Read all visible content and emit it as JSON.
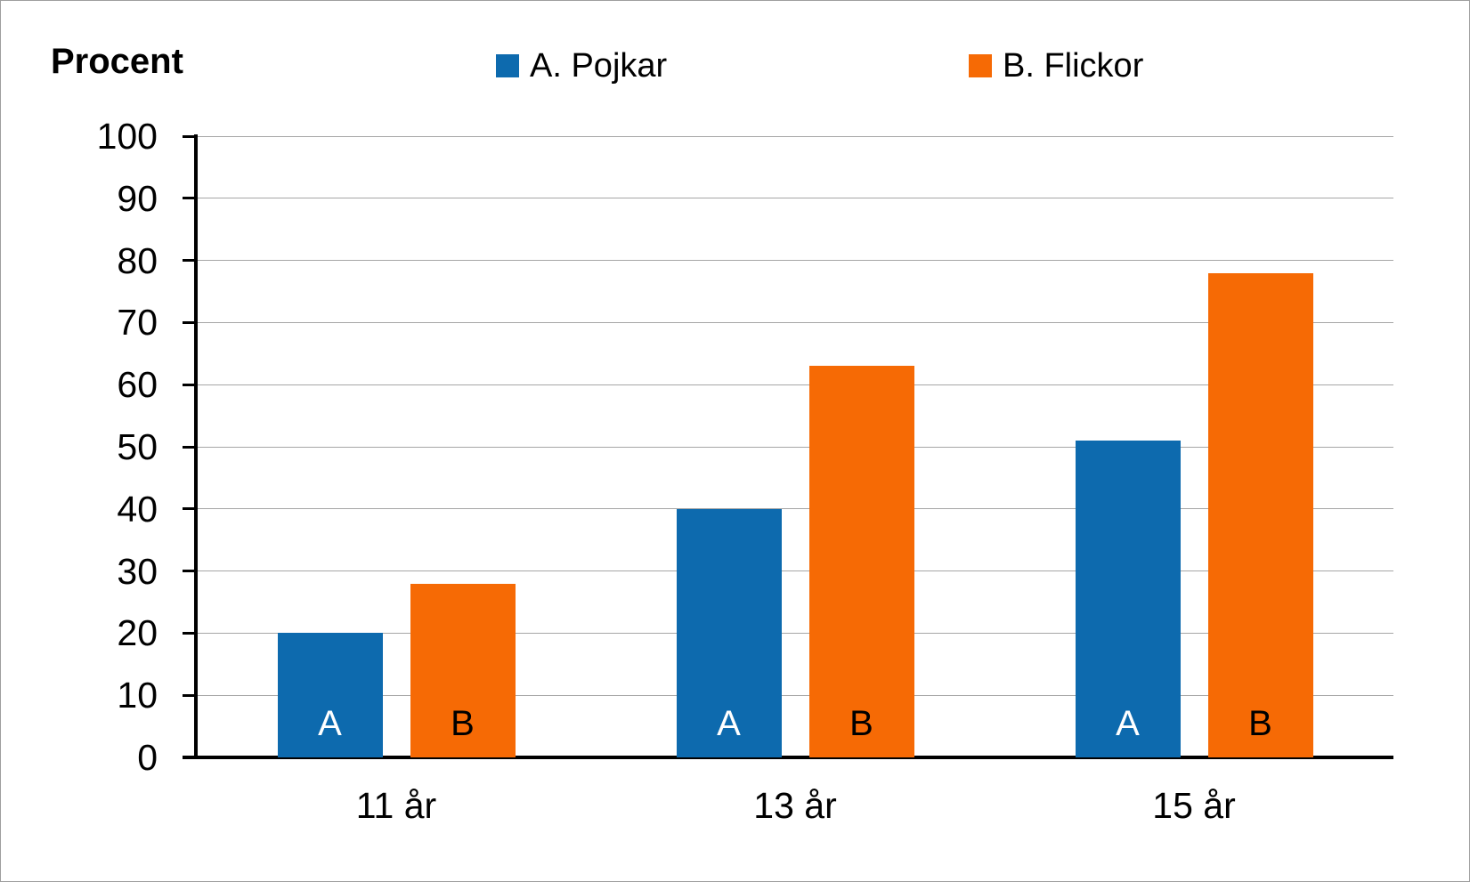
{
  "chart_data": {
    "type": "bar",
    "ylabel": "Procent",
    "categories": [
      "11 år",
      "13 år",
      "15 år"
    ],
    "series": [
      {
        "name": "A. Pojkar",
        "bar_letter": "A",
        "color": "#0d6aae",
        "letter_color": "#ffffff",
        "values": [
          20,
          40,
          51
        ]
      },
      {
        "name": "B. Flickor",
        "bar_letter": "B",
        "color": "#f66a05",
        "letter_color": "#000000",
        "values": [
          28,
          63,
          78
        ]
      }
    ],
    "ylim": [
      0,
      100
    ],
    "ytick_step": 10,
    "grid": true,
    "legend_position": "top",
    "gridline_color": "#a6a6a6",
    "axis_color": "#000000"
  }
}
